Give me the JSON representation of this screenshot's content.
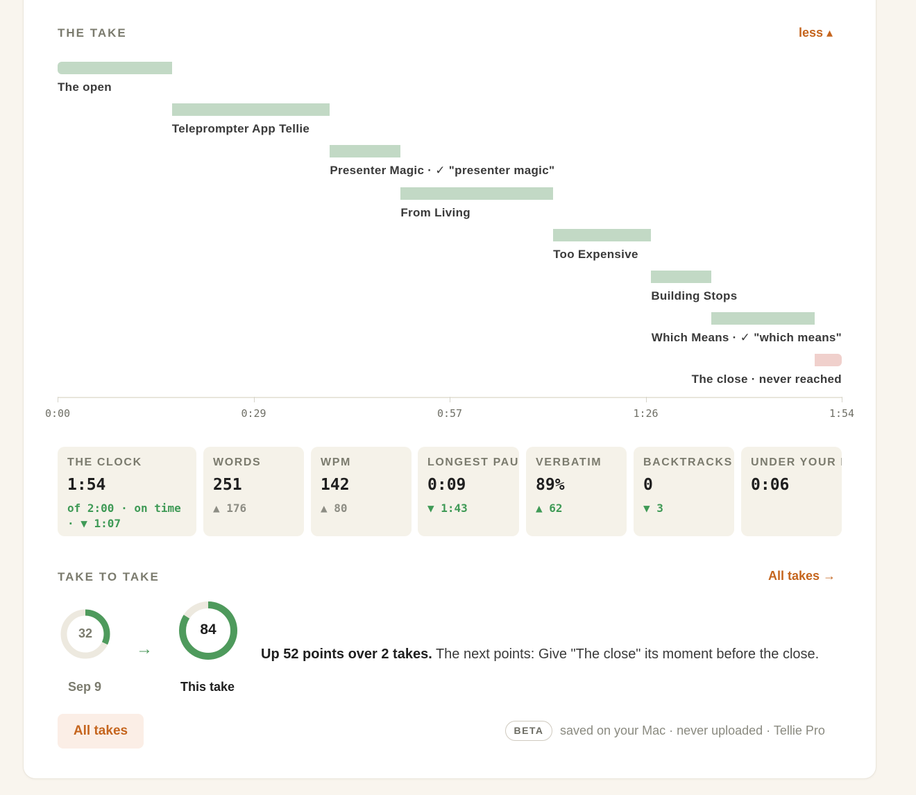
{
  "take": {
    "title": "THE TAKE",
    "toggle_label": "less ▴",
    "segments": [
      {
        "label": "The open",
        "start": 0,
        "end": 21,
        "status": "done"
      },
      {
        "label": "Teleprompter App Tellie",
        "start": 21,
        "end": 50,
        "status": "done"
      },
      {
        "label": "Presenter Magic · ✓ \"presenter magic\"",
        "start": 50,
        "end": 63,
        "status": "done"
      },
      {
        "label": "From Living",
        "start": 63,
        "end": 91,
        "status": "done"
      },
      {
        "label": "Too Expensive",
        "start": 91,
        "end": 109,
        "status": "done"
      },
      {
        "label": "Building Stops",
        "start": 109,
        "end": 120,
        "status": "done"
      },
      {
        "label": "Which Means · ✓ \"which means\"",
        "start": 120,
        "end": 139,
        "status": "done"
      },
      {
        "label": "The close · never reached",
        "start": 139,
        "end": 144,
        "status": "never"
      }
    ],
    "ticks": [
      "0:00",
      "0:29",
      "0:57",
      "1:26",
      "1:54"
    ]
  },
  "stats": [
    {
      "label": "THE CLOCK",
      "value": "1:54",
      "delta": "of 2:00 · on time · ▼ 1:07",
      "tone": "green"
    },
    {
      "label": "WORDS",
      "value": "251",
      "delta": "▲ 176",
      "tone": "gray"
    },
    {
      "label": "WPM",
      "value": "142",
      "delta": "▲ 80",
      "tone": "gray"
    },
    {
      "label": "LONGEST PAUSE",
      "value": "0:09",
      "delta": "▼ 1:43",
      "tone": "green"
    },
    {
      "label": "VERBATIM",
      "value": "89%",
      "delta": "▲ 62",
      "tone": "green"
    },
    {
      "label": "BACKTRACKS",
      "value": "0",
      "delta": "▼ 3",
      "tone": "green"
    },
    {
      "label": "UNDER YOUR LIMIT",
      "value": "0:06",
      "delta": "",
      "tone": "gray"
    }
  ],
  "take_to_take": {
    "title": "TAKE TO TAKE",
    "all_link": "All takes →",
    "previous": {
      "score": "32",
      "fraction": 0.32,
      "caption": "Sep 9"
    },
    "current": {
      "score": "84",
      "fraction": 0.84,
      "caption": "This take"
    },
    "arrow": "→",
    "summary_bold": "Up 52 points over 2 takes.",
    "summary_rest": " The next points: Give \"The close\" its moment before the close."
  },
  "footer": {
    "button_label": "All takes",
    "badge": "BETA",
    "note": "saved on your Mac · never uploaded · Tellie Pro"
  },
  "colors": {
    "accent": "#c5651e",
    "bar": "#c2d9c5",
    "bar_never": "#f0d0cc",
    "green": "#4e9a5c",
    "ring_bg": "#ede9df"
  }
}
